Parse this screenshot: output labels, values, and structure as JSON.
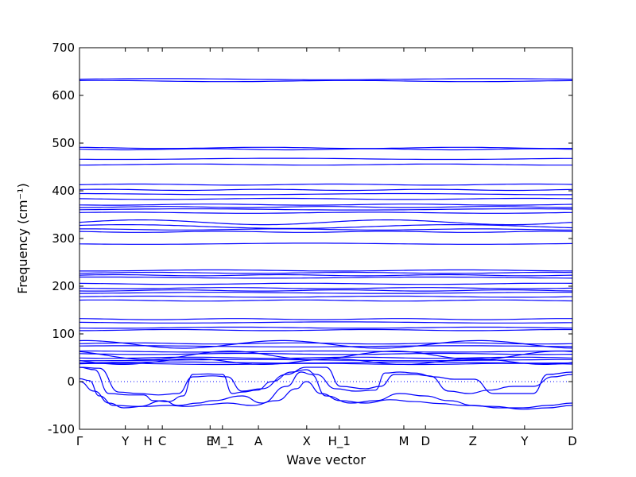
{
  "chart_data": {
    "type": "line",
    "xlabel": "Wave vector",
    "ylabel": "Frequency (cm⁻¹)",
    "ylim": [
      -100,
      700
    ],
    "y_ticks": [
      -100,
      0,
      100,
      200,
      300,
      400,
      500,
      600,
      700
    ],
    "x_ticks": [
      {
        "label": "Γ",
        "x": 0.0
      },
      {
        "label": "Y",
        "x": 0.093
      },
      {
        "label": "H",
        "x": 0.139
      },
      {
        "label": "C",
        "x": 0.168
      },
      {
        "label": "E",
        "x": 0.265
      },
      {
        "label": "M_1",
        "x": 0.29
      },
      {
        "label": "A",
        "x": 0.363
      },
      {
        "label": "X",
        "x": 0.461
      },
      {
        "label": "H_1",
        "x": 0.527
      },
      {
        "label": "M",
        "x": 0.658
      },
      {
        "label": "D",
        "x": 0.702
      },
      {
        "label": "Z",
        "x": 0.798
      },
      {
        "label": "Y",
        "x": 0.903
      },
      {
        "label": "D",
        "x": 1.0
      }
    ],
    "zero_line": {
      "y": 0,
      "style": "dotted"
    },
    "line_color": "#0000ff",
    "flat_bands": [
      634,
      630,
      490,
      487,
      467,
      455,
      413,
      402,
      393,
      383,
      371,
      366,
      361,
      354,
      319,
      314,
      289,
      233,
      228,
      223,
      218,
      205,
      196,
      191,
      186,
      178,
      170,
      131,
      124,
      113,
      108,
      80,
      74,
      63,
      58,
      50,
      45,
      40,
      37
    ],
    "wavy_bands": [
      {
        "base": 334,
        "amp": 5,
        "freq": 4
      },
      {
        "base": 325,
        "amp": 4,
        "freq": 3
      },
      {
        "base": 78,
        "amp": 8,
        "freq": 5
      },
      {
        "base": 55,
        "amp": 9,
        "freq": 6
      },
      {
        "base": 42,
        "amp": 6,
        "freq": 7
      }
    ],
    "acoustic_bands": [
      {
        "points": [
          [
            0,
            6
          ],
          [
            0.02,
            2
          ],
          [
            0.04,
            -30
          ],
          [
            0.07,
            -50
          ],
          [
            0.12,
            -52
          ],
          [
            0.17,
            -40
          ],
          [
            0.2,
            -50
          ],
          [
            0.24,
            -45
          ],
          [
            0.27,
            -40
          ],
          [
            0.33,
            -30
          ],
          [
            0.37,
            -45
          ],
          [
            0.42,
            -10
          ],
          [
            0.45,
            20
          ],
          [
            0.47,
            15
          ],
          [
            0.5,
            -30
          ],
          [
            0.55,
            -45
          ],
          [
            0.6,
            -40
          ],
          [
            0.65,
            -25
          ],
          [
            0.7,
            -30
          ],
          [
            0.75,
            -40
          ],
          [
            0.8,
            -50
          ],
          [
            0.85,
            -55
          ],
          [
            0.9,
            -55
          ],
          [
            0.95,
            -50
          ],
          [
            1.0,
            -45
          ]
        ]
      },
      {
        "points": [
          [
            0,
            0
          ],
          [
            0.03,
            -20
          ],
          [
            0.06,
            -45
          ],
          [
            0.09,
            -55
          ],
          [
            0.13,
            -52
          ],
          [
            0.18,
            -50
          ],
          [
            0.22,
            -52
          ],
          [
            0.26,
            -48
          ],
          [
            0.3,
            -45
          ],
          [
            0.35,
            -50
          ],
          [
            0.4,
            -40
          ],
          [
            0.44,
            -15
          ],
          [
            0.46,
            0
          ],
          [
            0.49,
            -25
          ],
          [
            0.53,
            -40
          ],
          [
            0.58,
            -45
          ],
          [
            0.63,
            -38
          ],
          [
            0.68,
            -42
          ],
          [
            0.73,
            -46
          ],
          [
            0.78,
            -50
          ],
          [
            0.84,
            -52
          ],
          [
            0.9,
            -58
          ],
          [
            0.95,
            -55
          ],
          [
            1.0,
            -50
          ]
        ]
      },
      {
        "points": [
          [
            0,
            30
          ],
          [
            0.03,
            25
          ],
          [
            0.06,
            -25
          ],
          [
            0.1,
            -28
          ],
          [
            0.13,
            -28
          ],
          [
            0.15,
            -40
          ],
          [
            0.18,
            -42
          ],
          [
            0.21,
            -30
          ],
          [
            0.23,
            15
          ],
          [
            0.26,
            16
          ],
          [
            0.29,
            15
          ],
          [
            0.31,
            -25
          ],
          [
            0.33,
            -22
          ],
          [
            0.36,
            -18
          ],
          [
            0.39,
            0
          ],
          [
            0.43,
            20
          ],
          [
            0.46,
            25
          ],
          [
            0.48,
            15
          ],
          [
            0.52,
            -15
          ],
          [
            0.56,
            -20
          ],
          [
            0.6,
            -18
          ],
          [
            0.62,
            18
          ],
          [
            0.65,
            20
          ],
          [
            0.68,
            18
          ],
          [
            0.72,
            10
          ],
          [
            0.76,
            5
          ],
          [
            0.8,
            5
          ],
          [
            0.84,
            -25
          ],
          [
            0.88,
            -25
          ],
          [
            0.92,
            -25
          ],
          [
            0.95,
            15
          ],
          [
            1.0,
            20
          ]
        ]
      },
      {
        "points": [
          [
            0,
            30
          ],
          [
            0.04,
            28
          ],
          [
            0.08,
            -22
          ],
          [
            0.12,
            -25
          ],
          [
            0.16,
            -28
          ],
          [
            0.2,
            -25
          ],
          [
            0.23,
            10
          ],
          [
            0.27,
            12
          ],
          [
            0.3,
            10
          ],
          [
            0.33,
            -20
          ],
          [
            0.37,
            -15
          ],
          [
            0.42,
            15
          ],
          [
            0.46,
            30
          ],
          [
            0.5,
            30
          ],
          [
            0.53,
            -10
          ],
          [
            0.58,
            -15
          ],
          [
            0.61,
            -10
          ],
          [
            0.64,
            15
          ],
          [
            0.68,
            15
          ],
          [
            0.71,
            12
          ],
          [
            0.75,
            -20
          ],
          [
            0.79,
            -25
          ],
          [
            0.83,
            -18
          ],
          [
            0.88,
            -10
          ],
          [
            0.92,
            -10
          ],
          [
            0.96,
            10
          ],
          [
            1.0,
            15
          ]
        ]
      }
    ]
  }
}
